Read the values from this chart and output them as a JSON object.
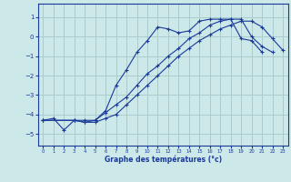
{
  "xlabel": "Graphe des températures (°c)",
  "background_color": "#cce8e8",
  "grid_color": "#aacccc",
  "line_color": "#1a3a9a",
  "xlim": [
    -0.5,
    23.5
  ],
  "ylim": [
    -5.6,
    1.7
  ],
  "yticks": [
    1,
    0,
    -1,
    -2,
    -3,
    -4,
    -5
  ],
  "xticks": [
    0,
    1,
    2,
    3,
    4,
    5,
    6,
    7,
    8,
    9,
    10,
    11,
    12,
    13,
    14,
    15,
    16,
    17,
    18,
    19,
    20,
    21,
    22,
    23
  ],
  "line1_x": [
    0,
    1,
    2,
    3,
    4,
    5,
    6,
    7,
    8,
    9,
    10,
    11,
    12,
    13,
    14,
    15,
    16,
    17,
    18,
    19,
    20,
    21
  ],
  "line1_y": [
    -4.3,
    -4.2,
    -4.8,
    -4.3,
    -4.3,
    -4.3,
    -3.8,
    -2.5,
    -1.7,
    -0.8,
    -0.2,
    0.5,
    0.4,
    0.2,
    0.3,
    0.8,
    0.9,
    0.9,
    0.9,
    -0.1,
    -0.2,
    -0.8
  ],
  "line2_x": [
    0,
    3,
    4,
    5,
    6,
    7,
    8,
    9,
    10,
    11,
    12,
    13,
    14,
    15,
    16,
    17,
    18,
    19,
    20,
    21,
    22
  ],
  "line2_y": [
    -4.3,
    -4.3,
    -4.4,
    -4.3,
    -3.9,
    -3.5,
    -3.1,
    -2.5,
    -1.9,
    -1.5,
    -1.0,
    -0.6,
    -0.1,
    0.2,
    0.6,
    0.8,
    0.9,
    0.9,
    0.0,
    -0.5,
    -0.8
  ],
  "line3_x": [
    0,
    3,
    4,
    5,
    6,
    7,
    8,
    9,
    10,
    11,
    12,
    13,
    14,
    15,
    16,
    17,
    18,
    19,
    20,
    21,
    22,
    23
  ],
  "line3_y": [
    -4.3,
    -4.3,
    -4.4,
    -4.4,
    -4.2,
    -4.0,
    -3.5,
    -3.0,
    -2.5,
    -2.0,
    -1.5,
    -1.0,
    -0.6,
    -0.2,
    0.1,
    0.4,
    0.6,
    0.8,
    0.8,
    0.5,
    -0.1,
    -0.7
  ]
}
